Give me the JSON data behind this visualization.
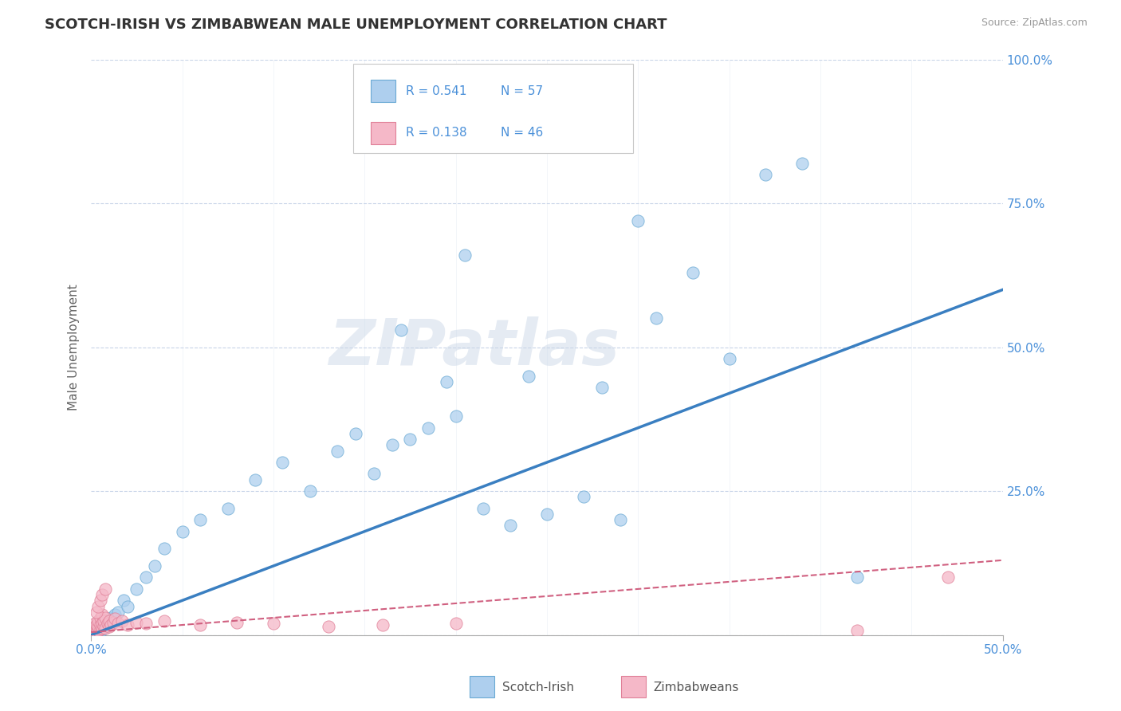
{
  "title": "SCOTCH-IRISH VS ZIMBABWEAN MALE UNEMPLOYMENT CORRELATION CHART",
  "source": "Source: ZipAtlas.com",
  "ylabel": "Male Unemployment",
  "xlim": [
    0.0,
    0.5
  ],
  "ylim": [
    0.0,
    1.0
  ],
  "yticks": [
    0.0,
    0.25,
    0.5,
    0.75,
    1.0
  ],
  "yticklabels": [
    "",
    "25.0%",
    "50.0%",
    "75.0%",
    "100.0%"
  ],
  "scotch_irish_R": 0.541,
  "scotch_irish_N": 57,
  "zimbabwean_R": 0.138,
  "zimbabwean_N": 46,
  "scotch_irish_color": "#aecfee",
  "scotch_irish_edge_color": "#6aaad4",
  "scotch_irish_line_color": "#3a7fc1",
  "zimbabwean_color": "#f5b8c8",
  "zimbabwean_edge_color": "#e08098",
  "zimbabwean_line_color": "#d06080",
  "background_color": "#ffffff",
  "grid_color": "#c8d4e8",
  "title_color": "#333333",
  "axis_label_color": "#4a90d9",
  "watermark": "ZIPatlas",
  "scotch_irish_x": [
    0.001,
    0.002,
    0.002,
    0.003,
    0.003,
    0.004,
    0.004,
    0.005,
    0.005,
    0.006,
    0.006,
    0.007,
    0.007,
    0.008,
    0.008,
    0.009,
    0.01,
    0.011,
    0.012,
    0.013,
    0.015,
    0.018,
    0.02,
    0.025,
    0.03,
    0.035,
    0.04,
    0.05,
    0.06,
    0.075,
    0.09,
    0.105,
    0.12,
    0.135,
    0.145,
    0.155,
    0.165,
    0.175,
    0.185,
    0.2,
    0.215,
    0.23,
    0.25,
    0.27,
    0.29,
    0.31,
    0.33,
    0.35,
    0.37,
    0.39,
    0.17,
    0.195,
    0.205,
    0.24,
    0.28,
    0.3,
    0.42
  ],
  "scotch_irish_y": [
    0.005,
    0.008,
    0.01,
    0.005,
    0.012,
    0.008,
    0.015,
    0.007,
    0.018,
    0.01,
    0.02,
    0.012,
    0.025,
    0.015,
    0.022,
    0.018,
    0.025,
    0.03,
    0.028,
    0.035,
    0.04,
    0.06,
    0.05,
    0.08,
    0.1,
    0.12,
    0.15,
    0.18,
    0.2,
    0.22,
    0.27,
    0.3,
    0.25,
    0.32,
    0.35,
    0.28,
    0.33,
    0.34,
    0.36,
    0.38,
    0.22,
    0.19,
    0.21,
    0.24,
    0.2,
    0.55,
    0.63,
    0.48,
    0.8,
    0.82,
    0.53,
    0.44,
    0.66,
    0.45,
    0.43,
    0.72,
    0.1
  ],
  "zimbabwean_x": [
    0.001,
    0.001,
    0.002,
    0.002,
    0.002,
    0.003,
    0.003,
    0.003,
    0.004,
    0.004,
    0.004,
    0.005,
    0.005,
    0.005,
    0.006,
    0.006,
    0.006,
    0.007,
    0.007,
    0.008,
    0.008,
    0.009,
    0.01,
    0.01,
    0.011,
    0.012,
    0.013,
    0.015,
    0.017,
    0.02,
    0.025,
    0.03,
    0.04,
    0.06,
    0.08,
    0.1,
    0.13,
    0.16,
    0.2,
    0.003,
    0.004,
    0.005,
    0.006,
    0.008,
    0.42,
    0.47
  ],
  "zimbabwean_y": [
    0.005,
    0.01,
    0.008,
    0.015,
    0.02,
    0.005,
    0.012,
    0.018,
    0.008,
    0.015,
    0.025,
    0.01,
    0.018,
    0.03,
    0.012,
    0.02,
    0.035,
    0.015,
    0.025,
    0.012,
    0.03,
    0.02,
    0.015,
    0.025,
    0.018,
    0.022,
    0.028,
    0.02,
    0.025,
    0.018,
    0.022,
    0.02,
    0.025,
    0.018,
    0.022,
    0.02,
    0.015,
    0.018,
    0.02,
    0.04,
    0.05,
    0.06,
    0.07,
    0.08,
    0.008,
    0.1
  ],
  "si_trendline_x": [
    0.0,
    0.5
  ],
  "si_trendline_y": [
    0.0,
    0.6
  ],
  "zim_trendline_x": [
    0.0,
    0.5
  ],
  "zim_trendline_y": [
    0.005,
    0.13
  ]
}
